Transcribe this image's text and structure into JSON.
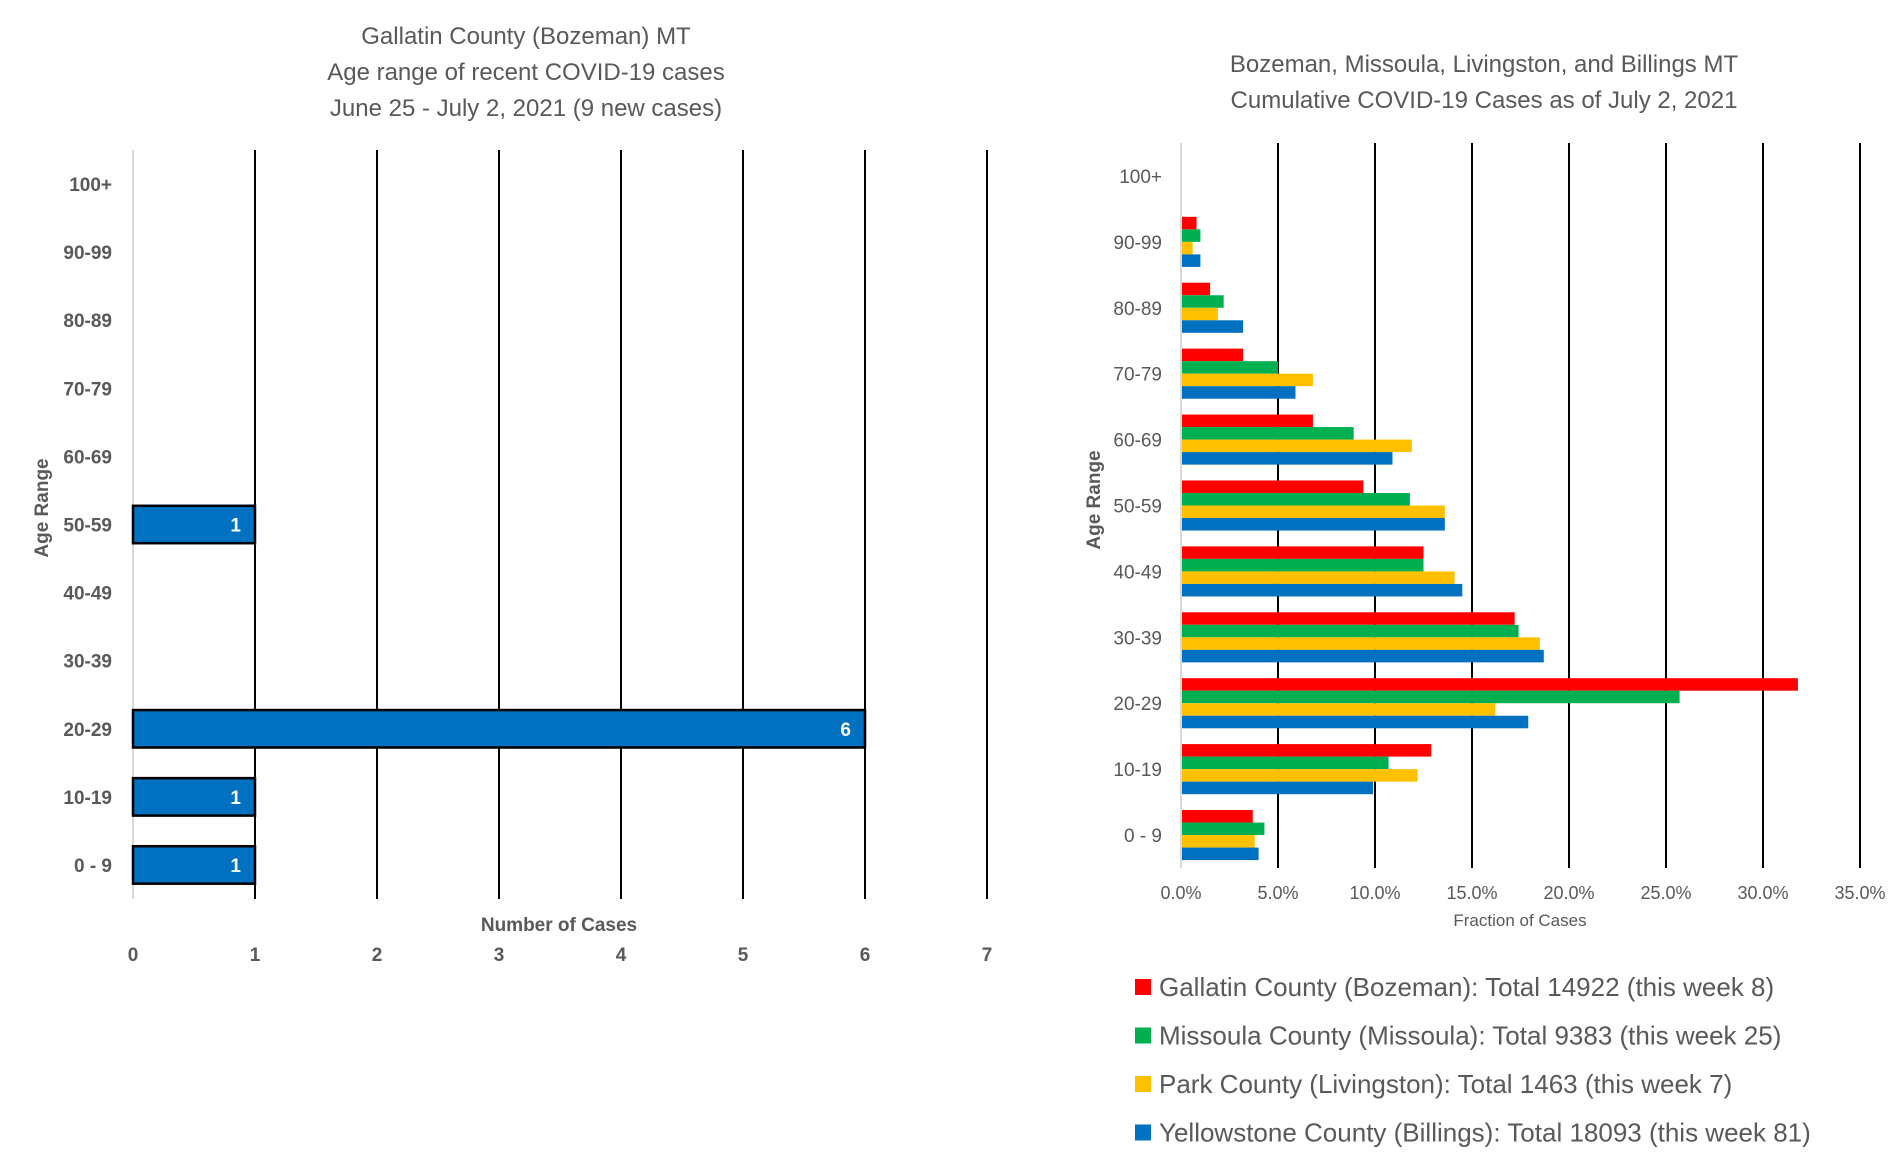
{
  "chart_data": [
    {
      "type": "bar",
      "orientation": "horizontal",
      "title_lines": [
        "Gallatin County (Bozeman) MT",
        "Age range of recent COVID-19 cases",
        "June 25 - July 2, 2021 (9 new cases)"
      ],
      "xlabel": "Number of Cases",
      "ylabel": "Age Range",
      "categories": [
        "100+",
        "90-99",
        "80-89",
        "70-79",
        "60-69",
        "50-59",
        "40-49",
        "30-39",
        "20-29",
        "10-19",
        "0 - 9"
      ],
      "values": [
        0,
        0,
        0,
        0,
        0,
        1,
        0,
        0,
        6,
        1,
        1
      ],
      "data_labels": [
        "",
        "",
        "",
        "",
        "",
        "1",
        "",
        "",
        "6",
        "1",
        "1"
      ],
      "xlim": [
        0,
        7
      ],
      "xticks": [
        "0",
        "1",
        "2",
        "3",
        "4",
        "5",
        "6",
        "7"
      ],
      "grid": true,
      "bar_color": "#0070C0",
      "bar_border_color": "#000000"
    },
    {
      "type": "bar",
      "orientation": "horizontal",
      "title_lines": [
        "Bozeman, Missoula, Livingston, and Billings MT",
        "Cumulative COVID-19 Cases as of July 2, 2021"
      ],
      "xlabel": "Fraction of Cases",
      "ylabel": "Age Range",
      "categories": [
        "100+",
        "90-99",
        "80-89",
        "70-79",
        "60-69",
        "50-59",
        "40-49",
        "30-39",
        "20-29",
        "10-19",
        "0 - 9"
      ],
      "xlim": [
        0,
        35
      ],
      "xticks": [
        "0.0%",
        "5.0%",
        "10.0%",
        "15.0%",
        "20.0%",
        "25.0%",
        "30.0%",
        "35.0%"
      ],
      "value_unit": "percent",
      "grid": true,
      "legend_position": "bottom",
      "series": [
        {
          "name": "Gallatin County (Bozeman): Total 14922 (this week 8)",
          "color": "#FF0000",
          "values": [
            0,
            0.8,
            1.5,
            3.2,
            6.8,
            9.4,
            12.5,
            17.2,
            31.8,
            12.9,
            3.7
          ]
        },
        {
          "name": "Missoula County (Missoula): Total 9383 (this week 25)",
          "color": "#00B050",
          "values": [
            0,
            1.0,
            2.2,
            5.0,
            8.9,
            11.8,
            12.5,
            17.4,
            25.7,
            10.7,
            4.3
          ]
        },
        {
          "name": "Park County (Livingston): Total 1463 (this week 7)",
          "color": "#FFC000",
          "values": [
            0,
            0.6,
            1.9,
            6.8,
            11.9,
            13.6,
            14.1,
            18.5,
            16.2,
            12.2,
            3.8
          ]
        },
        {
          "name": "Yellowstone County (Billings): Total 18093 (this week 81)",
          "color": "#0070C0",
          "values": [
            0,
            1.0,
            3.2,
            5.9,
            10.9,
            13.6,
            14.5,
            18.7,
            17.9,
            9.9,
            4.0
          ]
        }
      ]
    }
  ]
}
